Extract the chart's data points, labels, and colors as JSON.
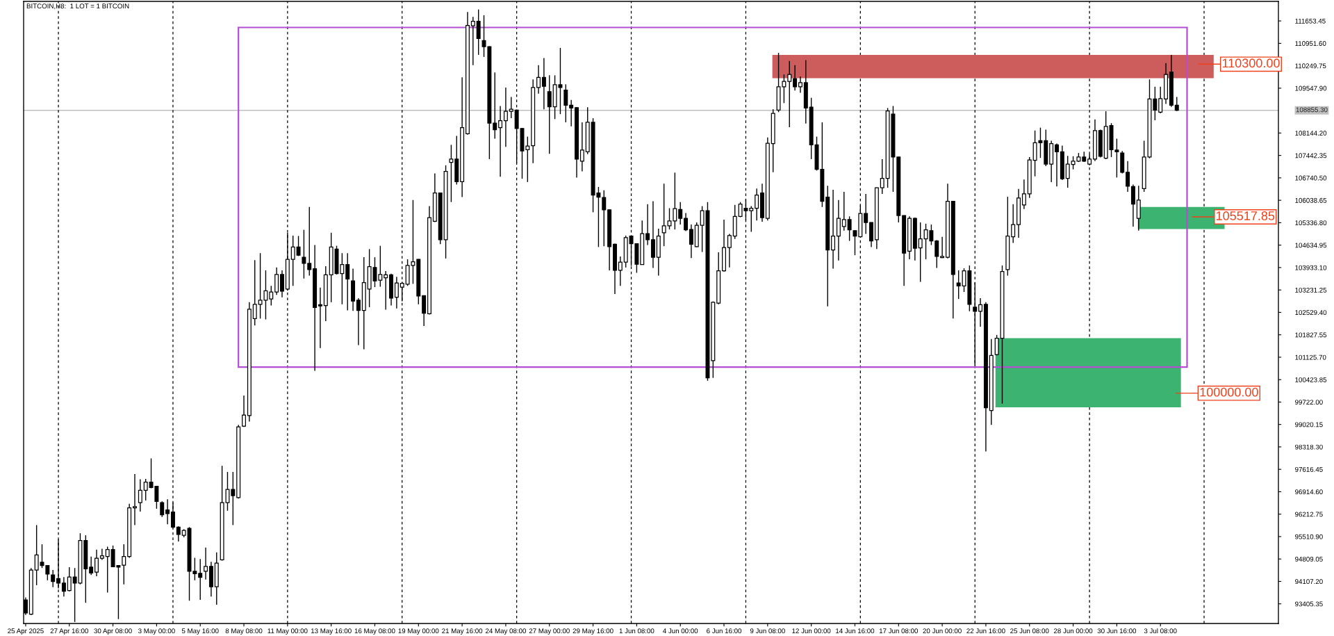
{
  "chart_data": {
    "type": "candlestick",
    "title": "BITCOIN,H8:  1 LOT = 1 BITCOIN",
    "x": [
      "2025-04-25T00:00",
      "2025-04-25T08:00",
      "2025-04-25T16:00",
      "2025-04-26T00:00",
      "2025-04-26T08:00",
      "2025-04-26T16:00",
      "2025-04-27T00:00",
      "2025-04-27T08:00",
      "2025-04-27T16:00",
      "2025-04-28T00:00",
      "2025-04-28T08:00",
      "2025-04-28T16:00",
      "2025-04-29T00:00",
      "2025-04-29T08:00",
      "2025-04-29T16:00",
      "2025-04-30T00:00",
      "2025-04-30T08:00",
      "2025-04-30T16:00",
      "2025-05-01T00:00",
      "2025-05-01T08:00",
      "2025-05-01T16:00",
      "2025-05-02T00:00",
      "2025-05-02T08:00",
      "2025-05-02T16:00",
      "2025-05-03T00:00",
      "2025-05-03T08:00",
      "2025-05-03T16:00",
      "2025-05-04T00:00",
      "2025-05-04T08:00",
      "2025-05-04T16:00",
      "2025-05-05T00:00",
      "2025-05-05T08:00",
      "2025-05-05T16:00",
      "2025-05-06T00:00",
      "2025-05-06T08:00",
      "2025-05-06T16:00",
      "2025-05-07T00:00",
      "2025-05-07T08:00",
      "2025-05-07T16:00",
      "2025-05-08T00:00",
      "2025-05-08T08:00",
      "2025-05-08T16:00",
      "2025-05-09T00:00",
      "2025-05-09T08:00",
      "2025-05-09T16:00",
      "2025-05-10T00:00",
      "2025-05-10T08:00",
      "2025-05-10T16:00",
      "2025-05-11T00:00",
      "2025-05-11T08:00",
      "2025-05-11T16:00",
      "2025-05-12T00:00",
      "2025-05-12T08:00",
      "2025-05-12T16:00",
      "2025-05-13T00:00",
      "2025-05-13T08:00",
      "2025-05-13T16:00",
      "2025-05-14T00:00",
      "2025-05-14T08:00",
      "2025-05-14T16:00",
      "2025-05-15T00:00",
      "2025-05-15T08:00",
      "2025-05-15T16:00",
      "2025-05-16T00:00",
      "2025-05-16T08:00",
      "2025-05-16T16:00",
      "2025-05-17T00:00",
      "2025-05-17T08:00",
      "2025-05-17T16:00",
      "2025-05-18T00:00",
      "2025-05-18T08:00",
      "2025-05-18T16:00",
      "2025-05-19T00:00",
      "2025-05-19T08:00",
      "2025-05-19T16:00",
      "2025-05-20T00:00",
      "2025-05-20T08:00",
      "2025-05-20T16:00",
      "2025-05-21T00:00",
      "2025-05-21T08:00",
      "2025-05-21T16:00",
      "2025-05-22T00:00",
      "2025-05-22T08:00",
      "2025-05-22T16:00",
      "2025-05-23T00:00",
      "2025-05-23T08:00",
      "2025-05-23T16:00",
      "2025-05-24T00:00",
      "2025-05-24T08:00",
      "2025-05-24T16:00",
      "2025-05-25T00:00",
      "2025-05-25T08:00",
      "2025-05-25T16:00",
      "2025-05-26T00:00",
      "2025-05-26T08:00",
      "2025-05-26T16:00",
      "2025-05-27T00:00",
      "2025-05-27T08:00",
      "2025-05-27T16:00",
      "2025-05-28T00:00",
      "2025-05-28T08:00",
      "2025-05-28T16:00",
      "2025-05-29T00:00",
      "2025-05-29T08:00",
      "2025-05-29T16:00",
      "2025-05-30T00:00",
      "2025-05-30T08:00",
      "2025-05-30T16:00",
      "2025-05-31T00:00",
      "2025-05-31T08:00",
      "2025-05-31T16:00",
      "2025-06-01T00:00",
      "2025-06-01T08:00",
      "2025-06-01T16:00",
      "2025-06-02T00:00",
      "2025-06-02T08:00",
      "2025-06-02T16:00",
      "2025-06-03T00:00",
      "2025-06-03T08:00",
      "2025-06-03T16:00",
      "2025-06-04T00:00",
      "2025-06-04T08:00",
      "2025-06-04T16:00",
      "2025-06-05T00:00",
      "2025-06-05T08:00",
      "2025-06-05T16:00",
      "2025-06-06T00:00",
      "2025-06-06T08:00",
      "2025-06-06T16:00",
      "2025-06-07T00:00",
      "2025-06-07T08:00",
      "2025-06-07T16:00",
      "2025-06-08T00:00",
      "2025-06-08T08:00",
      "2025-06-08T16:00",
      "2025-06-09T00:00",
      "2025-06-09T08:00",
      "2025-06-09T16:00",
      "2025-06-10T00:00",
      "2025-06-10T08:00",
      "2025-06-10T16:00",
      "2025-06-11T00:00",
      "2025-06-11T08:00",
      "2025-06-11T16:00",
      "2025-06-12T00:00",
      "2025-06-12T08:00",
      "2025-06-12T16:00",
      "2025-06-13T00:00",
      "2025-06-13T08:00",
      "2025-06-13T16:00",
      "2025-06-14T00:00",
      "2025-06-14T08:00",
      "2025-06-14T16:00",
      "2025-06-15T00:00",
      "2025-06-15T08:00",
      "2025-06-15T16:00",
      "2025-06-16T00:00",
      "2025-06-16T08:00",
      "2025-06-16T16:00",
      "2025-06-17T00:00",
      "2025-06-17T08:00",
      "2025-06-17T16:00",
      "2025-06-18T00:00",
      "2025-06-18T08:00",
      "2025-06-18T16:00",
      "2025-06-19T00:00",
      "2025-06-19T08:00",
      "2025-06-19T16:00",
      "2025-06-20T00:00",
      "2025-06-20T08:00",
      "2025-06-20T16:00",
      "2025-06-21T00:00",
      "2025-06-21T08:00",
      "2025-06-21T16:00",
      "2025-06-22T00:00",
      "2025-06-22T08:00",
      "2025-06-22T16:00",
      "2025-06-23T00:00",
      "2025-06-23T08:00",
      "2025-06-23T16:00",
      "2025-06-24T00:00",
      "2025-06-24T08:00",
      "2025-06-24T16:00",
      "2025-06-25T00:00",
      "2025-06-25T08:00",
      "2025-06-25T16:00",
      "2025-06-26T00:00",
      "2025-06-26T08:00",
      "2025-06-26T16:00",
      "2025-06-27T00:00",
      "2025-06-27T08:00",
      "2025-06-27T16:00",
      "2025-06-28T00:00",
      "2025-06-28T08:00",
      "2025-06-28T16:00",
      "2025-06-29T00:00",
      "2025-06-29T08:00",
      "2025-06-29T16:00",
      "2025-06-30T00:00",
      "2025-06-30T08:00",
      "2025-06-30T16:00",
      "2025-07-01T00:00",
      "2025-07-01T08:00",
      "2025-07-01T16:00",
      "2025-07-02T00:00",
      "2025-07-02T08:00",
      "2025-07-02T16:00",
      "2025-07-03T00:00",
      "2025-07-03T08:00",
      "2025-07-03T16:00",
      "2025-07-04T00:00",
      "2025-07-04T08:00"
    ],
    "ohlc": [
      [
        93529,
        93605,
        93055,
        93119
      ],
      [
        93081,
        94527,
        93055,
        94463
      ],
      [
        94463,
        95871,
        93989,
        94937
      ],
      [
        94706,
        95269,
        94527,
        94604
      ],
      [
        94604,
        94617,
        94143,
        94335
      ],
      [
        94309,
        94463,
        93925,
        94105
      ],
      [
        94194,
        95423,
        93887,
        94053
      ],
      [
        94053,
        94245,
        93631,
        93797
      ],
      [
        93823,
        94553,
        93797,
        94245
      ],
      [
        94245,
        94527,
        92837,
        94053
      ],
      [
        94053,
        95615,
        94015,
        95385
      ],
      [
        95385,
        95551,
        93439,
        94501
      ],
      [
        94553,
        94885,
        94309,
        94373
      ],
      [
        94399,
        95103,
        94271,
        94834
      ],
      [
        94834,
        95129,
        94783,
        94911
      ],
      [
        94885,
        95193,
        93759,
        95103
      ],
      [
        95103,
        95231,
        94553,
        94565
      ],
      [
        94604,
        94617,
        92927,
        94553
      ],
      [
        94617,
        95269,
        94015,
        94885
      ],
      [
        94885,
        96537,
        94847,
        96409
      ],
      [
        96409,
        97471,
        95871,
        96447
      ],
      [
        96575,
        97305,
        96293,
        96959
      ],
      [
        96959,
        97317,
        96639,
        97215
      ],
      [
        97215,
        97957,
        97023,
        97049
      ],
      [
        97087,
        97100,
        96383,
        96613
      ],
      [
        96575,
        96613,
        96127,
        96191
      ],
      [
        96345,
        96677,
        95897,
        96229
      ],
      [
        96281,
        96575,
        95781,
        95807
      ],
      [
        95807,
        95833,
        95359,
        95577
      ],
      [
        95551,
        95743,
        95487,
        95705
      ],
      [
        95769,
        95807,
        93503,
        94425
      ],
      [
        94425,
        94847,
        94143,
        94348
      ],
      [
        94361,
        94809,
        93529,
        94233
      ],
      [
        94425,
        95167,
        94169,
        94578
      ],
      [
        94578,
        94719,
        93631,
        93938
      ],
      [
        93938,
        95013,
        93375,
        94681
      ],
      [
        94783,
        97727,
        94757,
        96575
      ],
      [
        96575,
        97535,
        96319,
        96985
      ],
      [
        96985,
        97535,
        95871,
        96793
      ],
      [
        96729,
        99007,
        96703,
        98943
      ],
      [
        98969,
        99929,
        98943,
        99314
      ],
      [
        99301,
        102847,
        99109,
        102629
      ],
      [
        102335,
        104165,
        102117,
        102783
      ],
      [
        102783,
        104383,
        102335,
        102911
      ],
      [
        102911,
        103845,
        102309,
        103205
      ],
      [
        102949,
        103359,
        102745,
        103167
      ],
      [
        103167,
        103935,
        103077,
        103717
      ],
      [
        103717,
        103845,
        103001,
        103193
      ],
      [
        103257,
        105023,
        103205,
        104191
      ],
      [
        104191,
        104933,
        103359,
        104575
      ],
      [
        104575,
        104921,
        104293,
        104319
      ],
      [
        104255,
        105113,
        103589,
        104063
      ],
      [
        104063,
        105829,
        103679,
        103871
      ],
      [
        103897,
        104639,
        100697,
        102681
      ],
      [
        102770,
        103308,
        101413,
        102732
      ],
      [
        102745,
        103973,
        102258,
        103705
      ],
      [
        103705,
        105023,
        102847,
        104575
      ],
      [
        104511,
        104613,
        103717,
        103743
      ],
      [
        103743,
        104383,
        102783,
        104025
      ],
      [
        104025,
        104383,
        102591,
        103577
      ],
      [
        103513,
        103897,
        102578,
        102885
      ],
      [
        102911,
        102975,
        101503,
        102591
      ],
      [
        102591,
        104255,
        101375,
        103461
      ],
      [
        103257,
        104511,
        102693,
        103961
      ],
      [
        103935,
        104255,
        103321,
        103513
      ],
      [
        103538,
        104613,
        103333,
        103717
      ],
      [
        103615,
        103820,
        102617,
        103705
      ],
      [
        103705,
        103743,
        102745,
        102975
      ],
      [
        103001,
        103641,
        102655,
        103449
      ],
      [
        103321,
        103487,
        102873,
        103436
      ],
      [
        103410,
        104191,
        103359,
        103999
      ],
      [
        103999,
        106047,
        103423,
        104114
      ],
      [
        104191,
        104200,
        102783,
        103039
      ],
      [
        103052,
        103060,
        102105,
        102501
      ],
      [
        102489,
        105855,
        102463,
        105497
      ],
      [
        105381,
        106879,
        105356,
        106265
      ],
      [
        106265,
        106280,
        104665,
        104805
      ],
      [
        104805,
        107135,
        104217,
        106943
      ],
      [
        107225,
        107775,
        105983,
        107327
      ],
      [
        107327,
        108057,
        106533,
        106623
      ],
      [
        106623,
        109887,
        106137,
        108313
      ],
      [
        108121,
        111935,
        108095,
        111513
      ],
      [
        111500,
        111781,
        110271,
        111641
      ],
      [
        111641,
        112012,
        110591,
        111103
      ],
      [
        111039,
        111833,
        110527,
        110847
      ],
      [
        110847,
        110860,
        107327,
        108453
      ],
      [
        108453,
        110041,
        107967,
        108249
      ],
      [
        108313,
        108991,
        106777,
        108530
      ],
      [
        108530,
        109567,
        107711,
        108825
      ],
      [
        108825,
        109273,
        108607,
        108889
      ],
      [
        108863,
        108880,
        107199,
        108287
      ],
      [
        108287,
        108300,
        106713,
        107583
      ],
      [
        107621,
        108031,
        106610,
        107737
      ],
      [
        107749,
        109823,
        107199,
        109567
      ],
      [
        109567,
        110271,
        109375,
        109887
      ],
      [
        109887,
        110489,
        108889,
        109605
      ],
      [
        109439,
        109951,
        107493,
        108965
      ],
      [
        108965,
        109951,
        108581,
        109657
      ],
      [
        109657,
        110809,
        108735,
        109567
      ],
      [
        109490,
        109669,
        108479,
        109017
      ],
      [
        109017,
        109183,
        108351,
        108927
      ],
      [
        108940,
        108950,
        106751,
        107327
      ],
      [
        107263,
        108479,
        106943,
        107609
      ],
      [
        107557,
        108953,
        107481,
        108479
      ],
      [
        108479,
        108607,
        105663,
        106201
      ],
      [
        106265,
        106457,
        104575,
        106137
      ],
      [
        106124,
        106354,
        104601,
        105740
      ],
      [
        105740,
        105750,
        103845,
        104588
      ],
      [
        104665,
        104680,
        103103,
        103845
      ],
      [
        103845,
        104281,
        103359,
        104101
      ],
      [
        104101,
        104933,
        103935,
        104869
      ],
      [
        104921,
        104930,
        103986,
        104677
      ],
      [
        104677,
        104690,
        103769,
        104037
      ],
      [
        104025,
        105407,
        104020,
        104997
      ],
      [
        104997,
        105919,
        104639,
        104805
      ],
      [
        104805,
        106009,
        103922,
        104255
      ],
      [
        104255,
        105151,
        103679,
        104921
      ],
      [
        105023,
        106559,
        104601,
        105241
      ],
      [
        105241,
        105791,
        105125,
        105394
      ],
      [
        105394,
        106905,
        105125,
        105778
      ],
      [
        105753,
        105983,
        105279,
        105471
      ],
      [
        105471,
        105637,
        105074,
        105113
      ],
      [
        105125,
        105279,
        104229,
        104665
      ],
      [
        104588,
        105343,
        104575,
        105253
      ],
      [
        105253,
        105855,
        104421,
        105714
      ],
      [
        105714,
        105983,
        100389,
        100479
      ],
      [
        101017,
        102873,
        100479,
        102847
      ],
      [
        102821,
        104409,
        102783,
        103833
      ],
      [
        103833,
        105433,
        103807,
        104562
      ],
      [
        104562,
        104985,
        103935,
        104933
      ],
      [
        104921,
        105893,
        104831,
        105535
      ],
      [
        105535,
        105983,
        105509,
        105919
      ],
      [
        105791,
        106073,
        105407,
        105714
      ],
      [
        105714,
        105855,
        105049,
        105791
      ],
      [
        105791,
        106405,
        105407,
        106201
      ],
      [
        106265,
        106559,
        105369,
        105497
      ],
      [
        105471,
        108005,
        105407,
        107826
      ],
      [
        107813,
        108889,
        106917,
        108761
      ],
      [
        108863,
        110655,
        108799,
        109593
      ],
      [
        109593,
        109977,
        109081,
        109759
      ],
      [
        109759,
        110399,
        108325,
        109977
      ],
      [
        109849,
        110271,
        109477,
        109593
      ],
      [
        109593,
        109913,
        109401,
        109721
      ],
      [
        109721,
        110425,
        108441,
        108927
      ],
      [
        108953,
        109247,
        107327,
        107775
      ],
      [
        107775,
        108031,
        106969,
        107007
      ],
      [
        107007,
        108479,
        105829,
        106009
      ],
      [
        106137,
        106495,
        102719,
        104485
      ],
      [
        104485,
        106367,
        103897,
        104921
      ],
      [
        104921,
        106047,
        104153,
        105471
      ],
      [
        105215,
        106303,
        105087,
        105433
      ],
      [
        105433,
        105535,
        104767,
        105113
      ],
      [
        105087,
        105100,
        104319,
        104921
      ],
      [
        104895,
        105881,
        104890,
        105625
      ],
      [
        105625,
        106239,
        104985,
        105343
      ],
      [
        105343,
        105350,
        104575,
        104767
      ],
      [
        104805,
        106440,
        104511,
        106431
      ],
      [
        106431,
        107327,
        106239,
        106725
      ],
      [
        106725,
        108927,
        106431,
        108837
      ],
      [
        108735,
        108991,
        106303,
        107391
      ],
      [
        107391,
        107400,
        105343,
        105561
      ],
      [
        105561,
        105570,
        103359,
        104383
      ],
      [
        104447,
        105535,
        104191,
        105471
      ],
      [
        105471,
        105497,
        104153,
        104537
      ],
      [
        104549,
        105343,
        103487,
        104831
      ],
      [
        104831,
        105305,
        104191,
        105113
      ],
      [
        105087,
        105279,
        104639,
        104767
      ],
      [
        104767,
        104793,
        103922,
        104281
      ],
      [
        104242,
        104895,
        104229,
        104281
      ],
      [
        104255,
        106559,
        104217,
        106009
      ],
      [
        106009,
        106020,
        102335,
        103717
      ],
      [
        103449,
        103845,
        102949,
        103359
      ],
      [
        103359,
        103909,
        103167,
        103833
      ],
      [
        103833,
        103999,
        102565,
        102783
      ],
      [
        102693,
        103461,
        100863,
        102565
      ],
      [
        102565,
        102975,
        102079,
        102770
      ],
      [
        102783,
        102847,
        98175,
        99545
      ],
      [
        99455,
        101695,
        99007,
        101183
      ],
      [
        101209,
        101823,
        101183,
        101721
      ],
      [
        101721,
        103999,
        99673,
        103807
      ],
      [
        103871,
        106149,
        103679,
        104921
      ],
      [
        104895,
        105919,
        104703,
        105279
      ],
      [
        105279,
        106393,
        104869,
        106111
      ],
      [
        105893,
        106687,
        105765,
        106239
      ],
      [
        106239,
        107391,
        106111,
        107301
      ],
      [
        107288,
        108223,
        106789,
        107839
      ],
      [
        107903,
        108313,
        107365,
        107839
      ],
      [
        107903,
        108249,
        107109,
        107173
      ],
      [
        107173,
        107903,
        106610,
        107813
      ],
      [
        107775,
        107813,
        106469,
        107557
      ],
      [
        107557,
        107749,
        106675,
        106713
      ],
      [
        106726,
        107429,
        106431,
        107173
      ],
      [
        107161,
        107417,
        107007,
        107263
      ],
      [
        107263,
        107519,
        107237,
        107391
      ],
      [
        107391,
        107557,
        107237,
        107263
      ],
      [
        107173,
        107481,
        107135,
        107327
      ],
      [
        107327,
        108569,
        107263,
        108223
      ],
      [
        108223,
        108249,
        107378,
        107417
      ],
      [
        107353,
        108825,
        107327,
        108351
      ],
      [
        108377,
        108453,
        107391,
        107621
      ],
      [
        107609,
        107967,
        106751,
        107557
      ],
      [
        107519,
        107583,
        106879,
        106917
      ],
      [
        106917,
        107263,
        106303,
        106482
      ],
      [
        106469,
        106533,
        105215,
        105919
      ],
      [
        105471,
        106495,
        105087,
        106047
      ],
      [
        106405,
        107903,
        106303,
        107391
      ],
      [
        107391,
        109823,
        107353,
        109209
      ],
      [
        109209,
        109593,
        108543,
        108863
      ],
      [
        108799,
        109593,
        108761,
        109221
      ],
      [
        109209,
        110335,
        109055,
        109977
      ],
      [
        110053,
        110591,
        108965,
        109017
      ],
      [
        109017,
        109273,
        108830,
        108855.3
      ]
    ],
    "xlim": [
      "2025-04-24T21:00",
      "2025-07-10T13:00"
    ],
    "xticks": [
      {
        "value": "2025-04-25T00:00",
        "label": "25 Apr 2025"
      },
      {
        "value": "2025-04-27T16:00",
        "label": "27 Apr 16:00"
      },
      {
        "value": "2025-04-30T08:00",
        "label": "30 Apr 08:00"
      },
      {
        "value": "2025-05-03T00:00",
        "label": "3 May 00:00"
      },
      {
        "value": "2025-05-05T16:00",
        "label": "5 May 16:00"
      },
      {
        "value": "2025-05-08T08:00",
        "label": "8 May 08:00"
      },
      {
        "value": "2025-05-11T00:00",
        "label": "11 May 00:00"
      },
      {
        "value": "2025-05-13T16:00",
        "label": "13 May 16:00"
      },
      {
        "value": "2025-05-16T08:00",
        "label": "16 May 08:00"
      },
      {
        "value": "2025-05-19T00:00",
        "label": "19 May 00:00"
      },
      {
        "value": "2025-05-21T16:00",
        "label": "21 May 16:00"
      },
      {
        "value": "2025-05-24T08:00",
        "label": "24 May 08:00"
      },
      {
        "value": "2025-05-27T00:00",
        "label": "27 May 00:00"
      },
      {
        "value": "2025-05-29T16:00",
        "label": "29 May 16:00"
      },
      {
        "value": "2025-06-01T08:00",
        "label": "1 Jun 08:00"
      },
      {
        "value": "2025-06-04T00:00",
        "label": "4 Jun 00:00"
      },
      {
        "value": "2025-06-06T16:00",
        "label": "6 Jun 16:00"
      },
      {
        "value": "2025-06-09T08:00",
        "label": "9 Jun 08:00"
      },
      {
        "value": "2025-06-12T00:00",
        "label": "12 Jun 00:00"
      },
      {
        "value": "2025-06-14T16:00",
        "label": "14 Jun 16:00"
      },
      {
        "value": "2025-06-17T08:00",
        "label": "17 Jun 08:00"
      },
      {
        "value": "2025-06-20T00:00",
        "label": "20 Jun 00:00"
      },
      {
        "value": "2025-06-22T16:00",
        "label": "22 Jun 16:00"
      },
      {
        "value": "2025-06-25T08:00",
        "label": "25 Jun 08:00"
      },
      {
        "value": "2025-06-28T00:00",
        "label": "28 Jun 00:00"
      },
      {
        "value": "2025-06-30T16:00",
        "label": "30 Jun 16:00"
      },
      {
        "value": "2025-07-03T08:00",
        "label": "3 Jul 08:00"
      }
    ],
    "ylim": [
      92790,
      112265
    ],
    "yticks": [
      93405.35,
      {
        "value": 94107.2,
        "label": "94107.20"
      },
      94809.05,
      {
        "value": 95510.9,
        "label": "95510.90"
      },
      96212.75,
      {
        "value": 96914.6,
        "label": "96914.60"
      },
      97616.45,
      {
        "value": 98318.3,
        "label": "98318.30"
      },
      99020.15,
      {
        "value": 99722,
        "label": "99722.00"
      },
      100423.85,
      {
        "value": 101125.7,
        "label": "101125.70"
      },
      101827.55,
      {
        "value": 102529.4,
        "label": "102529.40"
      },
      103231.25,
      {
        "value": 103933.1,
        "label": "103933.10"
      },
      104634.95,
      {
        "value": 105336.8,
        "label": "105336.80"
      },
      106038.65,
      {
        "value": 106740.5,
        "label": "106740.50"
      },
      107442.35,
      {
        "value": 108144.2,
        "label": "108144.20"
      },
      {
        "value": 109547.9,
        "label": "109547.90"
      },
      110249.75,
      {
        "value": 110951.6,
        "label": "110951.60"
      },
      111653.45
    ],
    "ref_lines": [
      {
        "axis": "y",
        "value": 108855.3,
        "label": "108855.30",
        "color": "#c0c0c0"
      },
      {
        "axis": "x",
        "value": "2025-04-27T00:00",
        "color": "#000000",
        "line_style": "dashed"
      },
      {
        "axis": "x",
        "value": "2025-05-04T00:00",
        "color": "#000000",
        "line_style": "dashed"
      },
      {
        "axis": "x",
        "value": "2025-05-11T00:00",
        "color": "#000000",
        "line_style": "dashed"
      },
      {
        "axis": "x",
        "value": "2025-05-18T00:00",
        "color": "#000000",
        "line_style": "dashed"
      },
      {
        "axis": "x",
        "value": "2025-05-25T00:00",
        "color": "#000000",
        "line_style": "dashed"
      },
      {
        "axis": "x",
        "value": "2025-06-01T00:00",
        "color": "#000000",
        "line_style": "dashed"
      },
      {
        "axis": "x",
        "value": "2025-06-08T00:00",
        "color": "#000000",
        "line_style": "dashed"
      },
      {
        "axis": "x",
        "value": "2025-06-15T00:00",
        "color": "#000000",
        "line_style": "dashed"
      },
      {
        "axis": "x",
        "value": "2025-06-22T00:00",
        "color": "#000000",
        "line_style": "dashed"
      },
      {
        "axis": "x",
        "value": "2025-06-29T00:00",
        "color": "#000000",
        "line_style": "dashed"
      },
      {
        "axis": "x",
        "value": "2025-07-06T00:00",
        "color": "#000000",
        "line_style": "dashed"
      }
    ],
    "annotations": [
      "110300.00",
      "105517.85",
      "100000.00"
    ]
  }
}
